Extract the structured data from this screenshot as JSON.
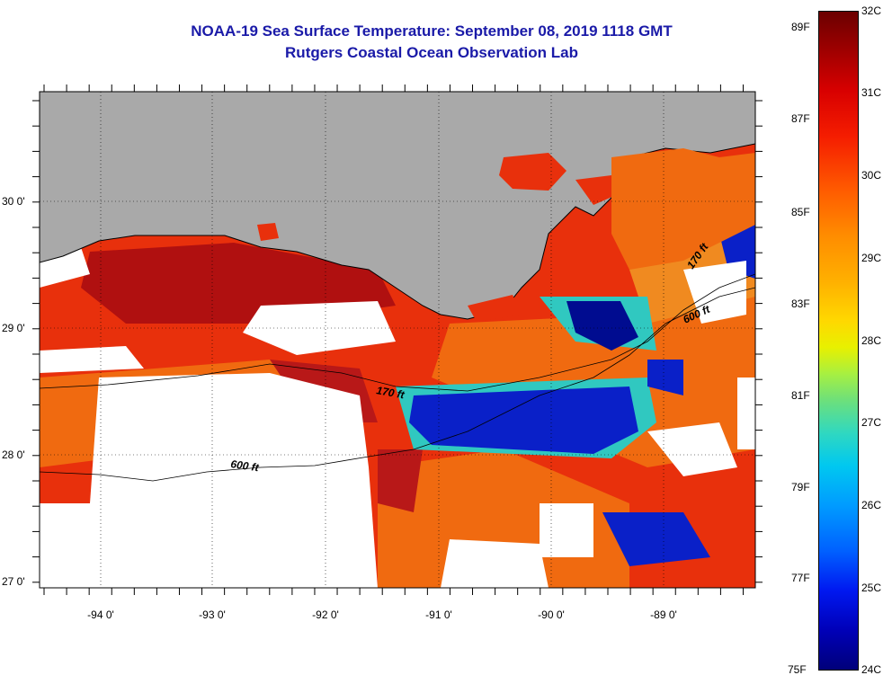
{
  "title": {
    "line1": "NOAA-19 Sea Surface Temperature:  September 08, 2019 1118 GMT",
    "line2": "Rutgers Coastal Ocean Observation Lab"
  },
  "map": {
    "lat_labels": [
      "30 0'",
      "29 0'",
      "28 0'",
      "27 0'"
    ],
    "lon_labels": [
      "-94 0'",
      "-93 0'",
      "-92 0'",
      "-91 0'",
      "-90 0'",
      "-89 0'"
    ],
    "contour_labels": [
      "170 ft",
      "600 ft",
      "170 ft",
      "600 ft"
    ],
    "colors": {
      "land": "#a9a9a9",
      "cloud": "#ffffff",
      "warm": "#e8300c",
      "hot": "#b01010",
      "orange": "#f06a10",
      "cool": "#0a20c8",
      "cold": "#000c90",
      "teal": "#30c8c0"
    }
  },
  "colorbar": {
    "fahrenheit": [
      "89F",
      "87F",
      "85F",
      "83F",
      "81F",
      "79F",
      "77F",
      "75F"
    ],
    "celsius": [
      "32C",
      "31C",
      "30C",
      "29C",
      "28C",
      "27C",
      "26C",
      "25C",
      "24C"
    ]
  }
}
